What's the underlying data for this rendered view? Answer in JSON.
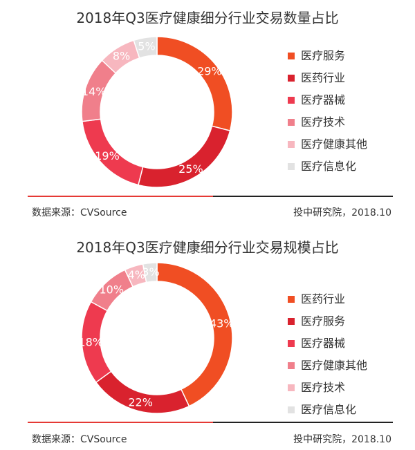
{
  "colors": {
    "rule_red": "#e53935",
    "rule_dark": "#222222"
  },
  "chart_data": [
    {
      "type": "pie",
      "variant": "donut",
      "title": "2018年Q3医疗健康细分行业交易数量占比",
      "legend_position": "right",
      "slices": [
        {
          "label": "医疗服务",
          "value": 29,
          "display": "29%",
          "color": "#f04e23"
        },
        {
          "label": "医药行业",
          "value": 25,
          "display": "25%",
          "color": "#d9222e"
        },
        {
          "label": "医疗器械",
          "value": 19,
          "display": "19%",
          "color": "#ee3a4f"
        },
        {
          "label": "医疗技术",
          "value": 14,
          "display": "14%",
          "color": "#f07f8b"
        },
        {
          "label": "医疗健康其他",
          "value": 8,
          "display": "8%",
          "color": "#f7b7bf"
        },
        {
          "label": "医疗信息化",
          "value": 5,
          "display": "5%",
          "color": "#e2e2e2"
        }
      ],
      "source": "数据来源：CVSource",
      "note": "投中研究院，2018.10"
    },
    {
      "type": "pie",
      "variant": "donut",
      "title": "2018年Q3医疗健康细分行业交易规模占比",
      "legend_position": "right",
      "slices": [
        {
          "label": "医药行业",
          "value": 43,
          "display": "43%",
          "color": "#f04e23"
        },
        {
          "label": "医疗服务",
          "value": 22,
          "display": "22%",
          "color": "#d9222e"
        },
        {
          "label": "医疗器械",
          "value": 18,
          "display": "18%",
          "color": "#ee3a4f"
        },
        {
          "label": "医疗健康其他",
          "value": 10,
          "display": "10%",
          "color": "#f07f8b"
        },
        {
          "label": "医疗技术",
          "value": 4,
          "display": "4%",
          "color": "#f7b7bf"
        },
        {
          "label": "医疗信息化",
          "value": 3,
          "display": "3%",
          "color": "#e2e2e2"
        }
      ],
      "source": "数据来源：CVSource",
      "note": "投中研究院，2018.10"
    }
  ]
}
